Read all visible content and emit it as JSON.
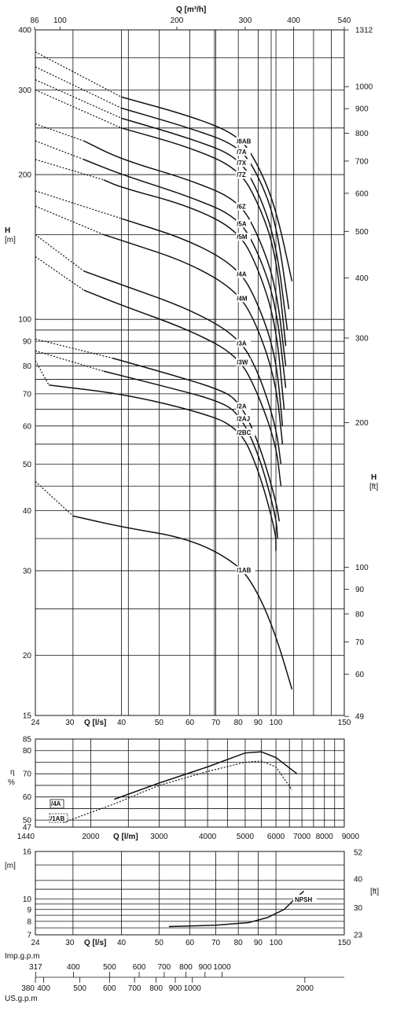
{
  "main_chart": {
    "type": "line",
    "x_top": {
      "label": "Q [m³/h]",
      "ticks": [
        "86",
        "100",
        "200",
        "300",
        "400",
        "540"
      ]
    },
    "x_bottom": {
      "label": "Q [l/s]",
      "ticks": [
        "24",
        "30",
        "40",
        "50",
        "60",
        "70",
        "80",
        "90",
        "100",
        "150"
      ]
    },
    "y_left": {
      "label_h": "H",
      "label_unit": "[m]",
      "ticks": [
        "400",
        "300",
        "200",
        "100",
        "90",
        "80",
        "70",
        "60",
        "50",
        "40",
        "30",
        "20",
        "15"
      ]
    },
    "y_right": {
      "label_h": "H",
      "label_unit": "[ft]",
      "ticks": [
        "1312",
        "1000",
        "900",
        "800",
        "700",
        "600",
        "500",
        "400",
        "300",
        "200",
        "100",
        "90",
        "80",
        "70",
        "60",
        "49"
      ]
    },
    "scale": "log-log",
    "x_range_ls": [
      24,
      150
    ],
    "y_range_m": [
      15,
      400
    ],
    "series": [
      {
        "name": "/8AB",
        "points": [
          [
            24,
            360
          ],
          [
            40,
            290
          ],
          [
            60,
            265
          ],
          [
            80,
            242
          ],
          [
            90,
            210
          ],
          [
            100,
            170
          ],
          [
            110,
            120
          ]
        ]
      },
      {
        "name": "/7A",
        "points": [
          [
            24,
            335
          ],
          [
            40,
            275
          ],
          [
            60,
            250
          ],
          [
            80,
            230
          ],
          [
            90,
            200
          ],
          [
            100,
            160
          ],
          [
            108,
            105
          ]
        ]
      },
      {
        "name": "/7X",
        "points": [
          [
            24,
            315
          ],
          [
            40,
            262
          ],
          [
            60,
            238
          ],
          [
            80,
            218
          ],
          [
            90,
            185
          ],
          [
            100,
            145
          ],
          [
            107,
            95
          ]
        ]
      },
      {
        "name": "/7Z",
        "points": [
          [
            24,
            300
          ],
          [
            40,
            250
          ],
          [
            60,
            228
          ],
          [
            80,
            206
          ],
          [
            90,
            175
          ],
          [
            100,
            138
          ],
          [
            106,
            88
          ]
        ]
      },
      {
        "name": "/6Z",
        "points": [
          [
            24,
            255
          ],
          [
            32,
            235
          ],
          [
            40,
            215
          ],
          [
            60,
            195
          ],
          [
            80,
            177
          ],
          [
            90,
            150
          ],
          [
            100,
            118
          ],
          [
            106,
            80
          ]
        ]
      },
      {
        "name": "/5A",
        "points": [
          [
            24,
            235
          ],
          [
            32,
            215
          ],
          [
            40,
            200
          ],
          [
            60,
            180
          ],
          [
            80,
            163
          ],
          [
            90,
            138
          ],
          [
            100,
            108
          ],
          [
            106,
            72
          ]
        ]
      },
      {
        "name": "/5M",
        "points": [
          [
            24,
            215
          ],
          [
            36,
            195
          ],
          [
            40,
            188
          ],
          [
            60,
            172
          ],
          [
            80,
            153
          ],
          [
            90,
            128
          ],
          [
            100,
            98
          ],
          [
            105,
            65
          ]
        ]
      },
      {
        "name": "/4A",
        "points": [
          [
            24,
            185
          ],
          [
            40,
            162
          ],
          [
            60,
            146
          ],
          [
            80,
            128
          ],
          [
            90,
            108
          ],
          [
            100,
            84
          ],
          [
            104,
            60
          ]
        ]
      },
      {
        "name": "/4M",
        "points": [
          [
            24,
            172
          ],
          [
            36,
            150
          ],
          [
            40,
            146
          ],
          [
            60,
            131
          ],
          [
            80,
            114
          ],
          [
            90,
            96
          ],
          [
            100,
            74
          ],
          [
            104,
            55
          ]
        ]
      },
      {
        "name": "/3A",
        "points": [
          [
            24,
            150
          ],
          [
            32,
            126
          ],
          [
            40,
            118
          ],
          [
            60,
            105
          ],
          [
            80,
            92
          ],
          [
            90,
            78
          ],
          [
            100,
            60
          ],
          [
            103,
            50
          ]
        ]
      },
      {
        "name": "/3W",
        "points": [
          [
            24,
            135
          ],
          [
            32,
            115
          ],
          [
            40,
            107
          ],
          [
            60,
            95
          ],
          [
            80,
            84
          ],
          [
            90,
            70
          ],
          [
            100,
            55
          ],
          [
            103,
            45
          ]
        ]
      },
      {
        "name": "/2A",
        "points": [
          [
            24,
            91
          ],
          [
            38,
            83
          ],
          [
            50,
            78
          ],
          [
            70,
            72
          ],
          [
            80,
            68
          ],
          [
            90,
            56
          ],
          [
            100,
            42
          ],
          [
            102,
            38
          ]
        ]
      },
      {
        "name": "/2AJ",
        "points": [
          [
            24,
            86
          ],
          [
            36,
            78
          ],
          [
            50,
            73
          ],
          [
            70,
            68
          ],
          [
            80,
            64
          ],
          [
            90,
            53
          ],
          [
            100,
            39
          ],
          [
            101,
            35
          ]
        ]
      },
      {
        "name": "/2BC",
        "points": [
          [
            24,
            82
          ],
          [
            26,
            73
          ],
          [
            40,
            70
          ],
          [
            60,
            65
          ],
          [
            80,
            60
          ],
          [
            90,
            49
          ],
          [
            100,
            36
          ],
          [
            100,
            33
          ]
        ]
      },
      {
        "name": "/1AB",
        "points": [
          [
            24,
            46
          ],
          [
            30,
            39
          ],
          [
            40,
            37
          ],
          [
            60,
            35
          ],
          [
            80,
            31
          ],
          [
            90,
            27
          ],
          [
            100,
            22
          ],
          [
            110,
            17
          ]
        ]
      }
    ]
  },
  "eff_chart": {
    "type": "line",
    "y_label_eta": "η",
    "y_label_unit": "%",
    "y_ticks": [
      "85",
      "80",
      "70",
      "60",
      "50",
      "47"
    ],
    "x_label": "Q [l/m]",
    "x_ticks": [
      "1440",
      "2000",
      "3000",
      "4000",
      "5000",
      "6000",
      "7000",
      "8000",
      "9000"
    ],
    "legend": [
      "/4A",
      "/1AB"
    ],
    "series": [
      {
        "name": "/4A",
        "points": [
          [
            2300,
            59
          ],
          [
            3000,
            66
          ],
          [
            4000,
            73
          ],
          [
            5000,
            79
          ],
          [
            5500,
            79.5
          ],
          [
            6000,
            77
          ],
          [
            6800,
            70
          ]
        ]
      },
      {
        "name": "/1AB",
        "points": [
          [
            1700,
            49
          ],
          [
            2300,
            57
          ],
          [
            3000,
            65
          ],
          [
            4000,
            71
          ],
          [
            5000,
            75
          ],
          [
            5500,
            75.5
          ],
          [
            6000,
            73
          ],
          [
            6600,
            63
          ]
        ]
      }
    ]
  },
  "npsh_chart": {
    "type": "line",
    "y_left_label": "[m]",
    "y_left_ticks": [
      "16",
      "10",
      "9",
      "8",
      "7"
    ],
    "y_right_label": "[ft]",
    "y_right_ticks": [
      "52",
      "40",
      "30",
      "23"
    ],
    "x_label": "Q [l/s]",
    "x_ticks": [
      "24",
      "30",
      "40",
      "50",
      "60",
      "70",
      "80",
      "90",
      "100",
      "150"
    ],
    "curve_label": "NPSH",
    "points": [
      [
        53,
        7.6
      ],
      [
        70,
        7.7
      ],
      [
        85,
        7.9
      ],
      [
        95,
        8.3
      ],
      [
        105,
        9.0
      ],
      [
        112,
        10.0
      ],
      [
        118,
        10.8
      ]
    ]
  },
  "bottom_scales": {
    "imp_label": "Imp.g.p.m",
    "imp_ticks": [
      "317",
      "400",
      "500",
      "600",
      "700",
      "800",
      "900",
      "1000"
    ],
    "us_label": "US.g.p.m",
    "us_ticks": [
      "380",
      "400",
      "500",
      "600",
      "700",
      "800",
      "900",
      "1000",
      "2000"
    ]
  }
}
